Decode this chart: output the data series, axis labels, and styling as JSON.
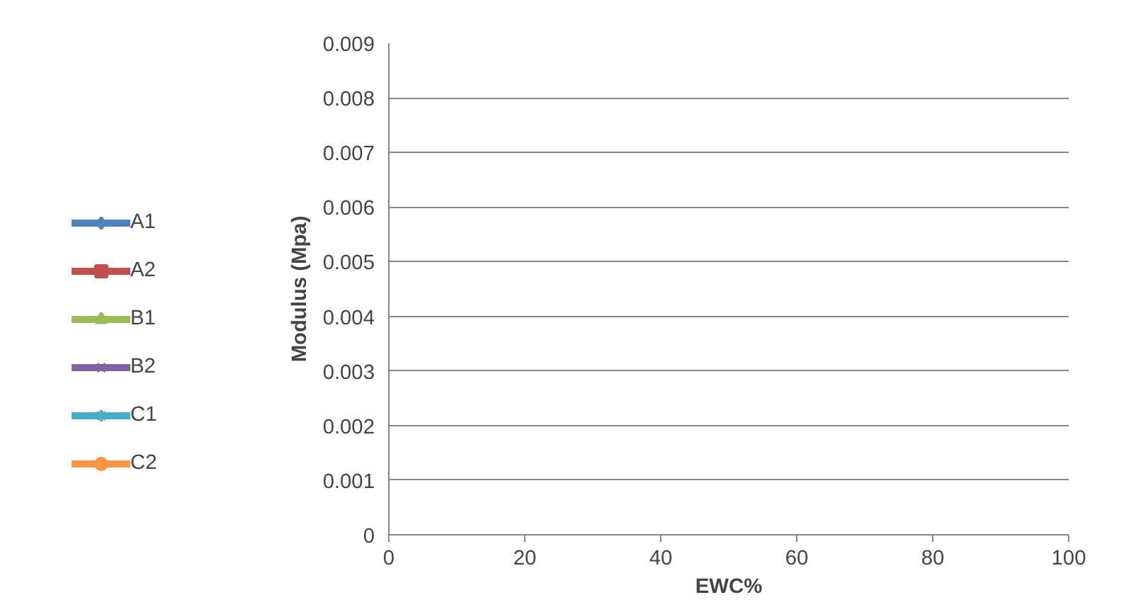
{
  "chart_data": {
    "type": "line",
    "xlabel": "EWC%",
    "ylabel": "Modulus (Mpa)",
    "xlim": [
      0,
      100
    ],
    "xticks": [
      0,
      20,
      40,
      60,
      80,
      100
    ],
    "ylim": [
      0,
      0.009
    ],
    "yticks": [
      0,
      0.001,
      0.002,
      0.003,
      0.004,
      0.005,
      0.006,
      0.007,
      0.008,
      0.009
    ],
    "grid": "y",
    "legend": "left",
    "series": [
      {
        "name": "A1",
        "color": "#4f81bd",
        "marker": "diamond",
        "x": [
          null
        ],
        "values": [
          null
        ]
      },
      {
        "name": "A2",
        "color": "#c0504d",
        "marker": "square",
        "x": [
          null
        ],
        "values": [
          null
        ]
      },
      {
        "name": "B1",
        "color": "#9bbb59",
        "marker": "triangle",
        "x": [
          null
        ],
        "values": [
          null
        ]
      },
      {
        "name": "B2",
        "color": "#8064a2",
        "marker": "cross",
        "x": [
          null
        ],
        "values": [
          null
        ]
      },
      {
        "name": "C1",
        "color": "#4bacc6",
        "marker": "star",
        "x": [
          null
        ],
        "values": [
          null
        ]
      },
      {
        "name": "C2",
        "color": "#f79646",
        "marker": "circle",
        "x": [
          null
        ],
        "values": [
          null
        ]
      }
    ]
  }
}
